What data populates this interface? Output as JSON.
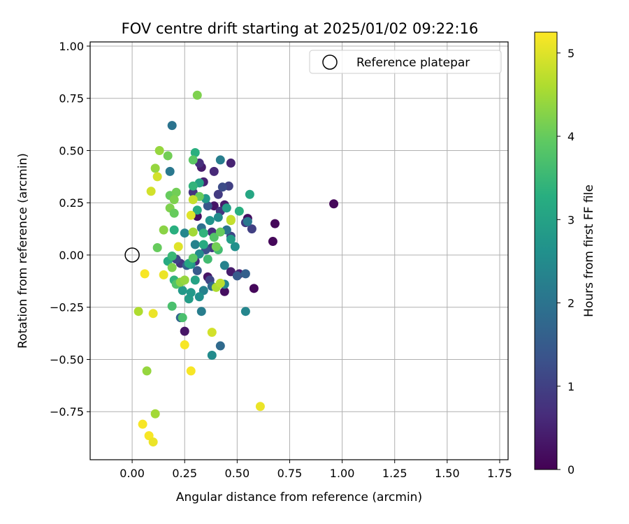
{
  "chart_data": {
    "type": "scatter",
    "title": "FOV centre drift starting at 2025/01/02 09:22:16",
    "xlabel": "Angular distance from reference (arcmin)",
    "ylabel": "Rotation from reference (arcmin)",
    "xlim": [
      -0.2,
      1.79
    ],
    "ylim": [
      -0.98,
      1.02
    ],
    "xticks": [
      0.0,
      0.25,
      0.5,
      0.75,
      1.0,
      1.25,
      1.5,
      1.75
    ],
    "xtick_labels": [
      "0.00",
      "0.25",
      "0.50",
      "0.75",
      "1.00",
      "1.25",
      "1.50",
      "1.75"
    ],
    "yticks": [
      -0.75,
      -0.5,
      -0.25,
      0.0,
      0.25,
      0.5,
      0.75,
      1.0
    ],
    "ytick_labels": [
      "−0.75",
      "−0.50",
      "−0.25",
      "0.00",
      "0.25",
      "0.50",
      "0.75",
      "1.00"
    ],
    "grid": true,
    "legend": {
      "position": "top-right",
      "entries": [
        "Reference platepar"
      ]
    },
    "colorbar": {
      "label": "Hours from first FF file",
      "range": [
        0,
        5.25
      ],
      "ticks": [
        0,
        1,
        2,
        3,
        4,
        5
      ],
      "tick_labels": [
        "0",
        "1",
        "2",
        "3",
        "4",
        "5"
      ],
      "colormap": "viridis"
    },
    "reference_point": {
      "x": 0.0,
      "y": 0.0
    },
    "series": [
      {
        "points": [
          {
            "x": 0.96,
            "y": 0.245,
            "h": 0.1
          },
          {
            "x": 0.68,
            "y": 0.15,
            "h": 0.1
          },
          {
            "x": 0.67,
            "y": 0.065,
            "h": 0.1
          },
          {
            "x": 0.58,
            "y": -0.16,
            "h": 0.1
          },
          {
            "x": 0.44,
            "y": -0.175,
            "h": 0.2
          },
          {
            "x": 0.36,
            "y": -0.105,
            "h": 0.3
          },
          {
            "x": 0.47,
            "y": -0.08,
            "h": 0.4
          },
          {
            "x": 0.51,
            "y": -0.09,
            "h": 0.5
          },
          {
            "x": 0.25,
            "y": -0.365,
            "h": 0.3
          },
          {
            "x": 0.31,
            "y": 0.185,
            "h": 0.2
          },
          {
            "x": 0.39,
            "y": 0.235,
            "h": 0.3
          },
          {
            "x": 0.44,
            "y": 0.24,
            "h": 0.4
          },
          {
            "x": 0.55,
            "y": 0.175,
            "h": 0.2
          },
          {
            "x": 0.47,
            "y": 0.44,
            "h": 0.5
          },
          {
            "x": 0.39,
            "y": 0.4,
            "h": 0.6
          },
          {
            "x": 0.33,
            "y": 0.42,
            "h": 0.4
          },
          {
            "x": 0.32,
            "y": 0.44,
            "h": 0.7
          },
          {
            "x": 0.34,
            "y": 0.35,
            "h": 0.5
          },
          {
            "x": 0.29,
            "y": 0.3,
            "h": 0.8
          },
          {
            "x": 0.41,
            "y": 0.29,
            "h": 0.9
          },
          {
            "x": 0.42,
            "y": 0.21,
            "h": 0.8
          },
          {
            "x": 0.46,
            "y": 0.33,
            "h": 1.0
          },
          {
            "x": 0.43,
            "y": 0.325,
            "h": 1.2
          },
          {
            "x": 0.36,
            "y": 0.235,
            "h": 1.4
          },
          {
            "x": 0.54,
            "y": 0.155,
            "h": 0.9
          },
          {
            "x": 0.57,
            "y": 0.125,
            "h": 1.0
          },
          {
            "x": 0.38,
            "y": 0.11,
            "h": 0.7
          },
          {
            "x": 0.47,
            "y": 0.09,
            "h": 1.1
          },
          {
            "x": 0.38,
            "y": 0.035,
            "h": 0.9
          },
          {
            "x": 0.35,
            "y": 0.025,
            "h": 1.3
          },
          {
            "x": 0.3,
            "y": -0.03,
            "h": 0.6
          },
          {
            "x": 0.23,
            "y": -0.04,
            "h": 0.8
          },
          {
            "x": 0.21,
            "y": -0.02,
            "h": 1.1
          },
          {
            "x": 0.26,
            "y": -0.05,
            "h": 1.6
          },
          {
            "x": 0.31,
            "y": -0.075,
            "h": 1.5
          },
          {
            "x": 0.37,
            "y": -0.12,
            "h": 1.1
          },
          {
            "x": 0.38,
            "y": -0.15,
            "h": 1.8
          },
          {
            "x": 0.5,
            "y": -0.1,
            "h": 1.5
          },
          {
            "x": 0.54,
            "y": -0.09,
            "h": 1.6
          },
          {
            "x": 0.23,
            "y": -0.3,
            "h": 1.7
          },
          {
            "x": 0.42,
            "y": -0.435,
            "h": 1.8
          },
          {
            "x": 0.19,
            "y": 0.62,
            "h": 2.0
          },
          {
            "x": 0.18,
            "y": 0.4,
            "h": 2.1
          },
          {
            "x": 0.42,
            "y": 0.455,
            "h": 2.2
          },
          {
            "x": 0.3,
            "y": 0.05,
            "h": 2.3
          },
          {
            "x": 0.25,
            "y": 0.105,
            "h": 2.4
          },
          {
            "x": 0.33,
            "y": 0.13,
            "h": 1.9
          },
          {
            "x": 0.45,
            "y": 0.12,
            "h": 2.0
          },
          {
            "x": 0.41,
            "y": 0.18,
            "h": 2.5
          },
          {
            "x": 0.55,
            "y": 0.16,
            "h": 2.1
          },
          {
            "x": 0.49,
            "y": 0.04,
            "h": 2.6
          },
          {
            "x": 0.33,
            "y": -0.27,
            "h": 2.2
          },
          {
            "x": 0.54,
            "y": -0.27,
            "h": 2.4
          },
          {
            "x": 0.38,
            "y": -0.48,
            "h": 2.5
          },
          {
            "x": 0.34,
            "y": -0.17,
            "h": 2.3
          },
          {
            "x": 0.32,
            "y": -0.2,
            "h": 2.6
          },
          {
            "x": 0.44,
            "y": -0.14,
            "h": 2.4
          },
          {
            "x": 0.44,
            "y": -0.05,
            "h": 2.3
          },
          {
            "x": 0.32,
            "y": 0.005,
            "h": 2.5
          },
          {
            "x": 0.28,
            "y": -0.045,
            "h": 2.7
          },
          {
            "x": 0.24,
            "y": -0.17,
            "h": 2.8
          },
          {
            "x": 0.27,
            "y": -0.21,
            "h": 2.9
          },
          {
            "x": 0.28,
            "y": -0.18,
            "h": 2.8
          },
          {
            "x": 0.3,
            "y": -0.12,
            "h": 3.0
          },
          {
            "x": 0.27,
            "y": -0.04,
            "h": 3.1
          },
          {
            "x": 0.17,
            "y": -0.03,
            "h": 3.2
          },
          {
            "x": 0.35,
            "y": 0.27,
            "h": 2.8
          },
          {
            "x": 0.37,
            "y": 0.165,
            "h": 2.7
          },
          {
            "x": 0.45,
            "y": 0.225,
            "h": 2.9
          },
          {
            "x": 0.47,
            "y": 0.075,
            "h": 2.9
          },
          {
            "x": 0.56,
            "y": 0.29,
            "h": 3.1
          },
          {
            "x": 0.51,
            "y": 0.21,
            "h": 3.3
          },
          {
            "x": 0.31,
            "y": 0.215,
            "h": 3.2
          },
          {
            "x": 0.32,
            "y": 0.345,
            "h": 3.0
          },
          {
            "x": 0.3,
            "y": 0.49,
            "h": 3.3
          },
          {
            "x": 0.29,
            "y": 0.33,
            "h": 3.4
          },
          {
            "x": 0.34,
            "y": 0.05,
            "h": 3.2
          },
          {
            "x": 0.34,
            "y": 0.105,
            "h": 3.4
          },
          {
            "x": 0.41,
            "y": 0.025,
            "h": 3.6
          },
          {
            "x": 0.2,
            "y": 0.12,
            "h": 3.3
          },
          {
            "x": 0.19,
            "y": -0.005,
            "h": 3.5
          },
          {
            "x": 0.2,
            "y": -0.12,
            "h": 3.4
          },
          {
            "x": 0.36,
            "y": -0.02,
            "h": 3.6
          },
          {
            "x": 0.19,
            "y": -0.245,
            "h": 3.7
          },
          {
            "x": 0.24,
            "y": -0.3,
            "h": 3.7
          },
          {
            "x": 0.29,
            "y": -0.015,
            "h": 3.9
          },
          {
            "x": 0.21,
            "y": -0.14,
            "h": 3.8
          },
          {
            "x": 0.39,
            "y": 0.085,
            "h": 3.8
          },
          {
            "x": 0.42,
            "y": 0.11,
            "h": 4.0
          },
          {
            "x": 0.4,
            "y": 0.04,
            "h": 4.1
          },
          {
            "x": 0.32,
            "y": 0.28,
            "h": 4.0
          },
          {
            "x": 0.29,
            "y": 0.455,
            "h": 3.9
          },
          {
            "x": 0.18,
            "y": 0.285,
            "h": 4.0
          },
          {
            "x": 0.21,
            "y": 0.3,
            "h": 4.1
          },
          {
            "x": 0.2,
            "y": 0.265,
            "h": 4.2
          },
          {
            "x": 0.18,
            "y": 0.225,
            "h": 4.2
          },
          {
            "x": 0.2,
            "y": 0.2,
            "h": 4.0
          },
          {
            "x": 0.12,
            "y": 0.035,
            "h": 4.0
          },
          {
            "x": 0.15,
            "y": 0.12,
            "h": 4.3
          },
          {
            "x": 0.17,
            "y": 0.475,
            "h": 4.1
          },
          {
            "x": 0.11,
            "y": 0.415,
            "h": 4.4
          },
          {
            "x": 0.31,
            "y": 0.765,
            "h": 4.2
          },
          {
            "x": 0.13,
            "y": 0.5,
            "h": 4.4
          },
          {
            "x": 0.19,
            "y": -0.06,
            "h": 4.2
          },
          {
            "x": 0.23,
            "y": -0.13,
            "h": 4.3
          },
          {
            "x": 0.25,
            "y": -0.12,
            "h": 4.4
          },
          {
            "x": 0.07,
            "y": -0.555,
            "h": 4.4
          },
          {
            "x": 0.11,
            "y": -0.76,
            "h": 4.5
          },
          {
            "x": 0.03,
            "y": -0.27,
            "h": 4.6
          },
          {
            "x": 0.29,
            "y": 0.11,
            "h": 4.5
          },
          {
            "x": 0.4,
            "y": -0.155,
            "h": 4.6
          },
          {
            "x": 0.42,
            "y": -0.135,
            "h": 4.7
          },
          {
            "x": 0.47,
            "y": 0.165,
            "h": 4.7
          },
          {
            "x": 0.47,
            "y": 0.17,
            "h": 4.8
          },
          {
            "x": 0.29,
            "y": 0.265,
            "h": 4.8
          },
          {
            "x": 0.12,
            "y": 0.375,
            "h": 4.9
          },
          {
            "x": 0.09,
            "y": 0.305,
            "h": 4.9
          },
          {
            "x": 0.22,
            "y": 0.04,
            "h": 5.0
          },
          {
            "x": 0.28,
            "y": 0.19,
            "h": 5.0
          },
          {
            "x": 0.38,
            "y": -0.37,
            "h": 4.9
          },
          {
            "x": 0.15,
            "y": -0.095,
            "h": 5.1
          },
          {
            "x": 0.06,
            "y": -0.09,
            "h": 5.2
          },
          {
            "x": 0.1,
            "y": -0.28,
            "h": 5.1
          },
          {
            "x": 0.25,
            "y": -0.43,
            "h": 5.2
          },
          {
            "x": 0.28,
            "y": -0.555,
            "h": 5.2
          },
          {
            "x": 0.61,
            "y": -0.725,
            "h": 5.1
          },
          {
            "x": 0.05,
            "y": -0.81,
            "h": 5.2
          },
          {
            "x": 0.08,
            "y": -0.865,
            "h": 5.2
          },
          {
            "x": 0.1,
            "y": -0.895,
            "h": 5.1
          }
        ]
      }
    ]
  }
}
